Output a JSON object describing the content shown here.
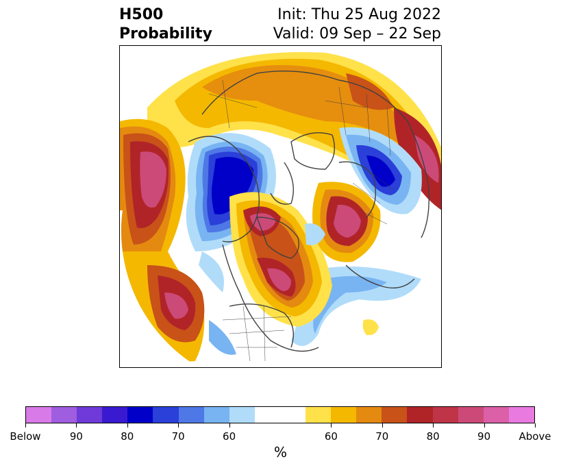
{
  "header": {
    "title_line1": "H500",
    "title_line2": "Probability",
    "init": "Init: Thu 25 Aug 2022",
    "valid": "Valid: 09 Sep – 22 Sep"
  },
  "map": {
    "projection": "north-polar-stereographic",
    "field": "500 hPa height anomaly probability",
    "land_outline_color": "#404040"
  },
  "colorbar": {
    "unit": "%",
    "colors": [
      "#d87ae8",
      "#9f5de0",
      "#6e3ad8",
      "#3a1ad0",
      "#0000c8",
      "#2a40d8",
      "#4e78e6",
      "#78b4f2",
      "#b0dcfa",
      "#ffffff",
      "#ffe14a",
      "#f4b800",
      "#e48a10",
      "#c85218",
      "#b02428",
      "#c03448",
      "#cc4a78",
      "#dc60a8",
      "#e87ae0"
    ],
    "tick_labels": [
      "Below",
      "90",
      "80",
      "70",
      "60",
      "60",
      "70",
      "80",
      "90",
      "Above"
    ]
  }
}
